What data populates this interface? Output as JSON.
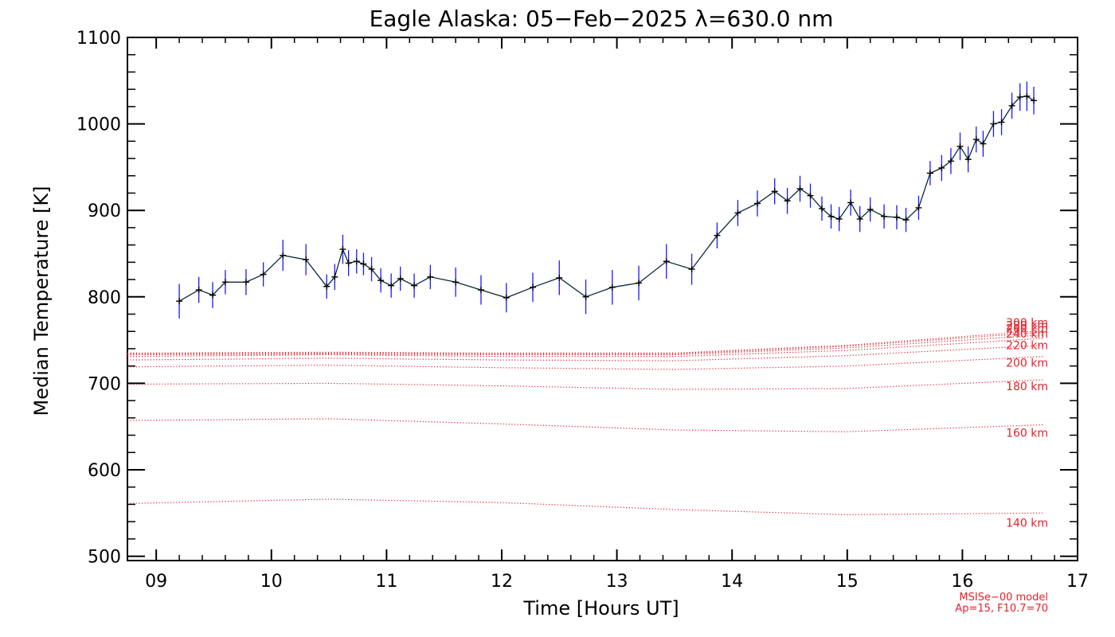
{
  "chart_data": {
    "type": "line",
    "title": "Eagle Alaska: 05−Feb−2025 λ=630.0 nm",
    "xlabel": "Time [Hours UT]",
    "ylabel": "Median Temperature [K]",
    "xlim": [
      8.75,
      17
    ],
    "ylim": [
      495,
      1100
    ],
    "x_ticks": [
      9,
      10,
      11,
      12,
      13,
      14,
      15,
      16,
      17
    ],
    "x_tick_labels": [
      "09",
      "10",
      "11",
      "12",
      "13",
      "14",
      "15",
      "16",
      "17"
    ],
    "y_ticks": [
      500,
      600,
      700,
      800,
      900,
      1000,
      1100
    ],
    "y_tick_labels": [
      "500",
      "600",
      "700",
      "800",
      "900",
      "1000",
      "1100"
    ],
    "series": [
      {
        "name": "Median Temperature",
        "color": "#0a2a3a",
        "error_color": "#1a1aff",
        "points": [
          [
            9.2,
            795,
            20
          ],
          [
            9.37,
            808,
            15
          ],
          [
            9.49,
            802,
            15
          ],
          [
            9.6,
            817,
            14
          ],
          [
            9.78,
            817,
            15
          ],
          [
            9.93,
            826,
            14
          ],
          [
            10.1,
            848,
            18
          ],
          [
            10.3,
            843,
            18
          ],
          [
            10.48,
            812,
            14
          ],
          [
            10.55,
            823,
            15
          ],
          [
            10.62,
            855,
            17
          ],
          [
            10.67,
            839,
            15
          ],
          [
            10.74,
            841,
            14
          ],
          [
            10.8,
            838,
            13
          ],
          [
            10.87,
            832,
            14
          ],
          [
            10.95,
            819,
            14
          ],
          [
            11.04,
            813,
            14
          ],
          [
            11.12,
            821,
            14
          ],
          [
            11.24,
            813,
            14
          ],
          [
            11.38,
            823,
            14
          ],
          [
            11.6,
            817,
            17
          ],
          [
            11.82,
            808,
            17
          ],
          [
            12.04,
            799,
            17
          ],
          [
            12.27,
            811,
            17
          ],
          [
            12.5,
            822,
            20
          ],
          [
            12.73,
            800,
            20
          ],
          [
            12.96,
            811,
            20
          ],
          [
            13.19,
            816,
            20
          ],
          [
            13.43,
            841,
            20
          ],
          [
            13.65,
            832,
            18
          ],
          [
            13.87,
            871,
            15
          ],
          [
            14.05,
            897,
            15
          ],
          [
            14.22,
            908,
            15
          ],
          [
            14.37,
            922,
            15
          ],
          [
            14.48,
            911,
            15
          ],
          [
            14.59,
            925,
            15
          ],
          [
            14.68,
            917,
            14
          ],
          [
            14.78,
            902,
            14
          ],
          [
            14.86,
            893,
            14
          ],
          [
            14.93,
            890,
            14
          ],
          [
            15.03,
            909,
            15
          ],
          [
            15.11,
            890,
            15
          ],
          [
            15.2,
            901,
            14
          ],
          [
            15.32,
            893,
            14
          ],
          [
            15.43,
            892,
            14
          ],
          [
            15.51,
            889,
            14
          ],
          [
            15.62,
            903,
            14
          ],
          [
            15.72,
            943,
            14
          ],
          [
            15.82,
            949,
            15
          ],
          [
            15.9,
            957,
            15
          ],
          [
            15.98,
            974,
            16
          ],
          [
            16.05,
            959,
            15
          ],
          [
            16.12,
            982,
            15
          ],
          [
            16.18,
            977,
            15
          ],
          [
            16.27,
            1000,
            15
          ],
          [
            16.34,
            1002,
            15
          ],
          [
            16.43,
            1021,
            15
          ],
          [
            16.5,
            1031,
            16
          ],
          [
            16.56,
            1032,
            17
          ],
          [
            16.62,
            1027,
            16
          ]
        ]
      }
    ],
    "model_series": [
      {
        "name": "140 km",
        "label": "140 km",
        "values": [
          [
            8.75,
            561
          ],
          [
            10.5,
            566
          ],
          [
            12,
            562
          ],
          [
            13.5,
            554
          ],
          [
            15,
            548
          ],
          [
            16.7,
            550
          ]
        ]
      },
      {
        "name": "160 km",
        "label": "160 km",
        "values": [
          [
            8.75,
            657
          ],
          [
            10.5,
            659
          ],
          [
            12,
            653
          ],
          [
            13.5,
            646
          ],
          [
            15,
            644
          ],
          [
            16.7,
            652
          ]
        ]
      },
      {
        "name": "180 km",
        "label": "180 km",
        "values": [
          [
            8.75,
            699
          ],
          [
            10.5,
            700
          ],
          [
            12,
            697
          ],
          [
            13.5,
            693
          ],
          [
            15,
            694
          ],
          [
            16.7,
            704
          ]
        ]
      },
      {
        "name": "200 km",
        "label": "200 km",
        "values": [
          [
            8.75,
            719
          ],
          [
            10.5,
            721
          ],
          [
            12,
            718
          ],
          [
            13.5,
            716
          ],
          [
            15,
            720
          ],
          [
            16.7,
            731
          ]
        ]
      },
      {
        "name": "220 km",
        "label": "220 km",
        "values": [
          [
            8.75,
            727
          ],
          [
            10.5,
            729
          ],
          [
            12,
            727
          ],
          [
            13.5,
            726
          ],
          [
            15,
            732
          ],
          [
            16.7,
            744
          ]
        ]
      },
      {
        "name": "240 km",
        "label": "240 km",
        "values": [
          [
            8.75,
            731
          ],
          [
            10.5,
            733
          ],
          [
            12,
            731
          ],
          [
            13.5,
            731
          ],
          [
            15,
            738
          ],
          [
            16.7,
            752
          ]
        ]
      },
      {
        "name": "260 km",
        "label": "260 km",
        "values": [
          [
            8.75,
            733
          ],
          [
            10.5,
            734
          ],
          [
            12,
            733
          ],
          [
            13.5,
            733
          ],
          [
            15,
            741
          ],
          [
            16.7,
            756
          ]
        ]
      },
      {
        "name": "280 km",
        "label": "280 km",
        "values": [
          [
            8.75,
            734
          ],
          [
            10.5,
            735
          ],
          [
            12,
            734
          ],
          [
            13.5,
            734
          ],
          [
            15,
            743
          ],
          [
            16.7,
            759
          ]
        ]
      },
      {
        "name": "300 km",
        "label": "300 km",
        "values": [
          [
            8.75,
            735
          ],
          [
            10.5,
            736
          ],
          [
            12,
            735
          ],
          [
            13.5,
            735
          ],
          [
            15,
            744
          ],
          [
            16.7,
            761
          ]
        ]
      }
    ],
    "model_color": "#e8212b",
    "model_note_line1": "MSISe−00 model",
    "model_note_line2": "Ap=15, F10.7=70",
    "grid": false
  }
}
